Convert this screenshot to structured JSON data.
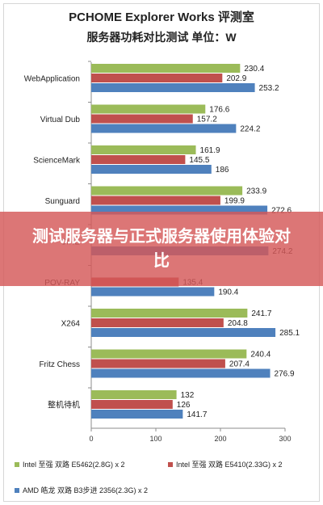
{
  "chart_data": {
    "type": "bar",
    "orientation": "horizontal",
    "title": "PCHOME Explorer Works 评测室",
    "subtitle": "服务器功耗对比测试  单位：W",
    "categories": [
      "WebApplication",
      "Virtual Dub",
      "ScienceMark",
      "Sunguard",
      "CINEBENCH",
      "POV-RAY",
      "X264",
      "Fritz Chess",
      "整机待机"
    ],
    "category_labels_shown": [
      "WebApplication",
      "Virtual Dub",
      "ScienceMark",
      "Sunguard",
      "CINE",
      "POV-RAY",
      "X264",
      "Fritz Chess",
      "整机待机"
    ],
    "series": [
      {
        "name": "Intel 至强 双路 E5462(2.8G) x 2",
        "color": "#9bbb59",
        "values": [
          230.4,
          176.6,
          161.9,
          233.9,
          null,
          null,
          241.7,
          240.4,
          132
        ]
      },
      {
        "name": "Intel 至强 双路 E5410(2.33G) x 2",
        "color": "#c0504d",
        "values": [
          202.9,
          157.2,
          145.5,
          199.9,
          null,
          135.4,
          204.8,
          207.4,
          126
        ]
      },
      {
        "name": "AMD 皓龙 双路 B3步进 2356(2.3G) x 2",
        "color": "#4f81bd",
        "values": [
          253.2,
          224.2,
          186,
          272.6,
          274.2,
          190.4,
          285.1,
          276.9,
          141.7
        ]
      }
    ],
    "xlim": [
      0,
      300
    ],
    "xticks": [
      "0",
      "100",
      "200",
      "300"
    ],
    "grid": false,
    "legend_position": "bottom"
  },
  "overlay": {
    "text": "测试服务器与正式服务器使用体验对比"
  }
}
